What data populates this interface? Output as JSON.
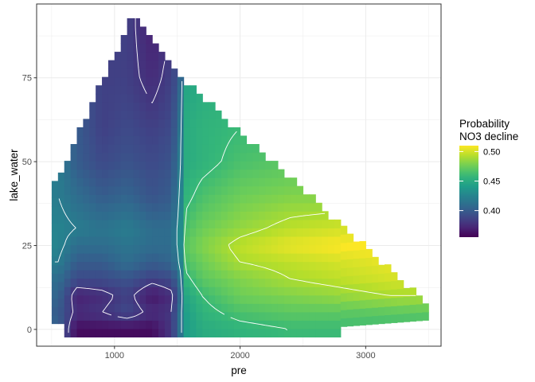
{
  "chart_data": {
    "type": "heatmap",
    "xlabel": "pre",
    "ylabel": "lake_water",
    "xlim": [
      380,
      3600
    ],
    "ylim": [
      -5,
      97
    ],
    "xticks": [
      1000,
      2000,
      3000
    ],
    "yticks": [
      0,
      25,
      50,
      75
    ],
    "x_tick_labels": [
      "1000",
      "2000",
      "3000"
    ],
    "y_tick_labels": [
      "0",
      "25",
      "50",
      "75"
    ],
    "legend": {
      "title_lines": [
        "Probability",
        "NO3 decline"
      ],
      "breaks": [
        0.4,
        0.45,
        0.5
      ],
      "break_labels": [
        "0.40",
        "0.45",
        "0.50"
      ],
      "range": [
        0.355,
        0.51
      ],
      "placement": "right"
    },
    "grid": true,
    "colormap": "viridis",
    "contour_color": "#ffffff",
    "tile_size": {
      "x": 50,
      "y": 2.5
    },
    "region": {
      "description_bounds": "triangular data hull",
      "left_x": 525,
      "left_top": 43,
      "apex_x": 1150,
      "apex_top": 94,
      "steep_break_x": 1475,
      "steep_break_top": 77,
      "right_x": 3475,
      "right_top": 8,
      "right_bottom_x": 2775,
      "bottom_start_x": 625,
      "bottom_level_left": 3,
      "bottom_level": -1
    },
    "field_anchors": {
      "pre": [
        550,
        700,
        900,
        1100,
        1300,
        1450,
        1520,
        1560,
        1700,
        2000,
        2400,
        2800,
        3200,
        3450
      ],
      "lake_water": [
        0,
        5,
        10,
        15,
        20,
        25,
        30,
        40,
        50,
        60,
        75,
        90
      ],
      "probability": [
        [
          0.405,
          0.36,
          0.36,
          0.36,
          0.36,
          0.38,
          0.41,
          0.44,
          0.45,
          0.455,
          0.46,
          0.46,
          0.46,
          0.46
        ],
        [
          0.4,
          0.375,
          0.38,
          0.39,
          0.375,
          0.38,
          0.41,
          0.44,
          0.455,
          0.465,
          0.47,
          0.47,
          0.47,
          0.47
        ],
        [
          0.405,
          0.37,
          0.375,
          0.385,
          0.365,
          0.375,
          0.4,
          0.445,
          0.46,
          0.475,
          0.48,
          0.485,
          0.49,
          0.49
        ],
        [
          0.41,
          0.39,
          0.39,
          0.395,
          0.385,
          0.39,
          0.41,
          0.455,
          0.47,
          0.48,
          0.49,
          0.495,
          0.5,
          0.5
        ],
        [
          0.42,
          0.4,
          0.4,
          0.41,
          0.4,
          0.405,
          0.42,
          0.465,
          0.475,
          0.49,
          0.495,
          0.5,
          0.505,
          0.505
        ],
        [
          0.425,
          0.41,
          0.41,
          0.415,
          0.41,
          0.41,
          0.425,
          0.47,
          0.48,
          0.495,
          0.505,
          0.51,
          0.51,
          0.51
        ],
        [
          0.425,
          0.42,
          0.415,
          0.42,
          0.41,
          0.41,
          0.425,
          0.465,
          0.475,
          0.485,
          0.495,
          0.5,
          0.5,
          0.5
        ],
        [
          0.42,
          0.41,
          0.4,
          0.405,
          0.395,
          0.4,
          0.42,
          0.455,
          0.465,
          0.475,
          0.48,
          0.48,
          0.48,
          0.48
        ],
        [
          0.42,
          0.4,
          0.39,
          0.395,
          0.39,
          0.395,
          0.415,
          0.45,
          0.455,
          0.465,
          0.47,
          0.47,
          0.47,
          0.47
        ],
        [
          0.42,
          0.4,
          0.385,
          0.39,
          0.385,
          0.39,
          0.41,
          0.45,
          0.455,
          0.46,
          0.46,
          0.46,
          0.46,
          0.46
        ],
        [
          0.42,
          0.4,
          0.385,
          0.385,
          0.375,
          0.385,
          0.4,
          0.445,
          0.45,
          0.455,
          0.455,
          0.455,
          0.455,
          0.455
        ],
        [
          0.42,
          0.4,
          0.385,
          0.385,
          0.37,
          0.38,
          0.4,
          0.44,
          0.45,
          0.45,
          0.45,
          0.45,
          0.45,
          0.45
        ]
      ]
    },
    "contour_levels": [
      0.38,
      0.42,
      0.46,
      0.49
    ]
  }
}
